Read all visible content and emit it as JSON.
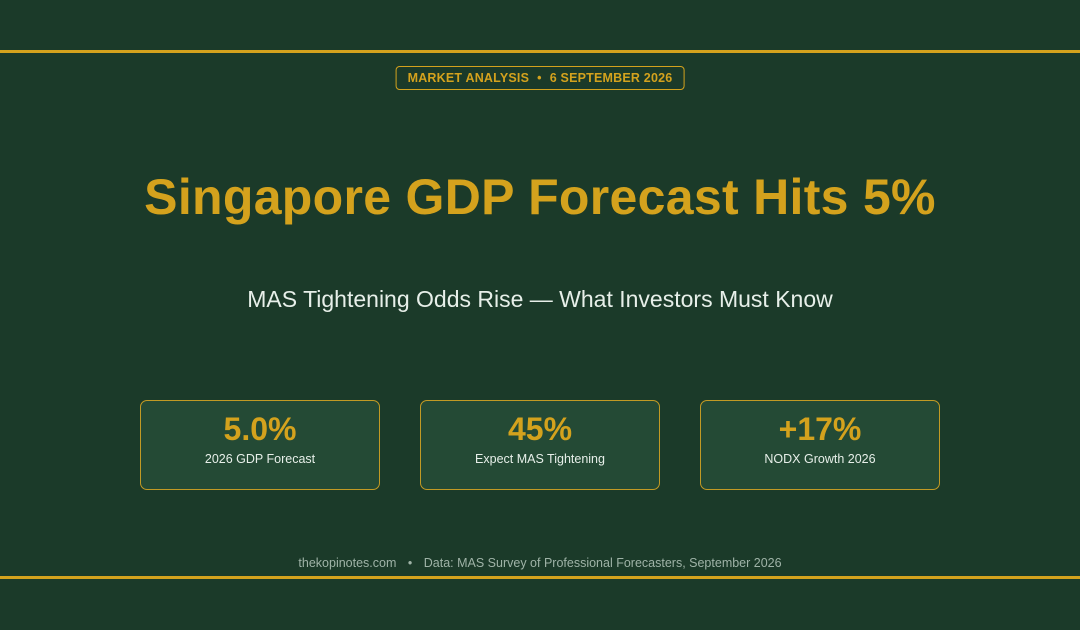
{
  "header": {
    "category": "MARKET ANALYSIS",
    "separator": "•",
    "date": "6 SEPTEMBER 2026"
  },
  "headline": {
    "title": "Singapore GDP Forecast Hits 5%",
    "subtitle": "MAS Tightening Odds Rise — What Investors Must Know"
  },
  "stats": [
    {
      "value": "5.0%",
      "label": "2026 GDP Forecast"
    },
    {
      "value": "45%",
      "label": "Expect MAS Tightening"
    },
    {
      "value": "+17%",
      "label": "NODX Growth 2026"
    }
  ],
  "footer": {
    "site": "thekopinotes.com",
    "separator": "•",
    "source": "Data: MAS Survey of Professional Forecasters, September 2026"
  },
  "colors": {
    "background": "#1b3a29",
    "accent": "#d4a21d",
    "card": "#244a35",
    "text": "#e7efe9",
    "muted": "#9fb3a7"
  }
}
